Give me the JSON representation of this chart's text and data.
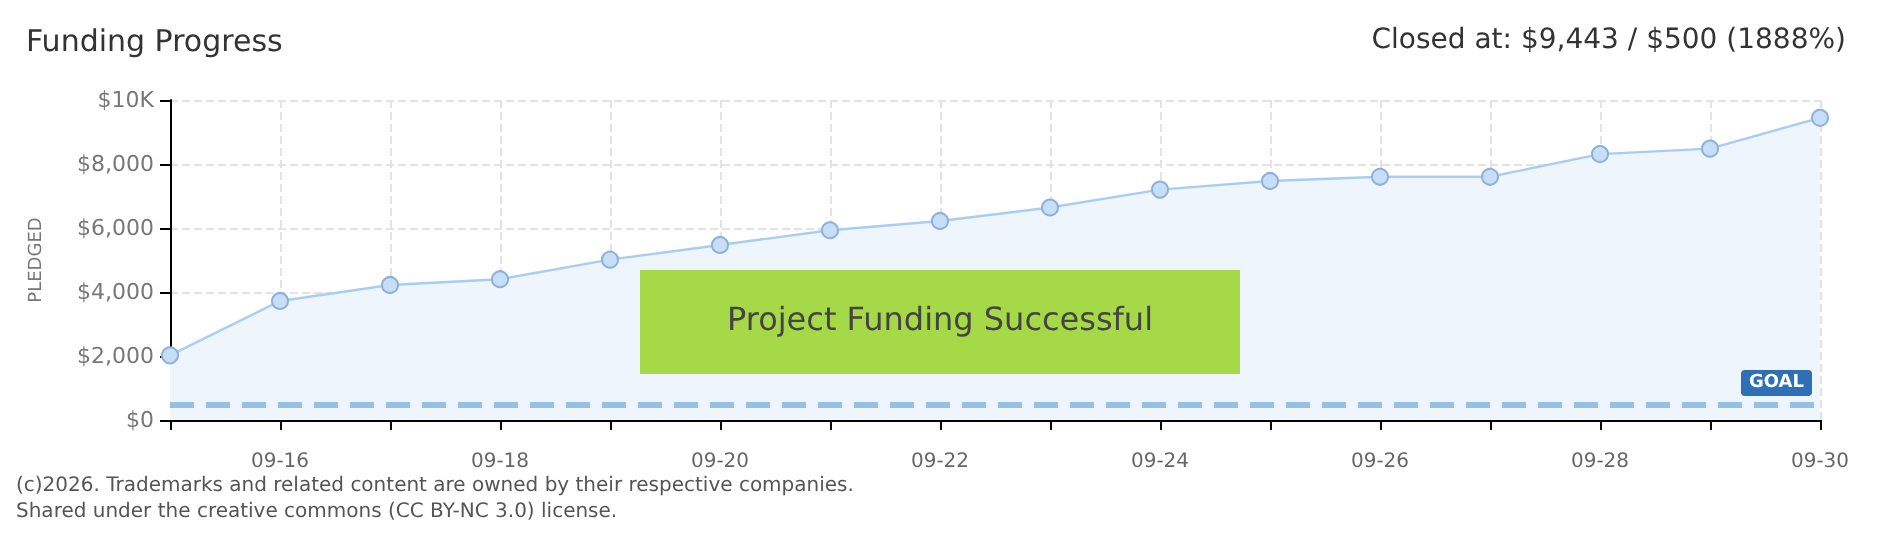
{
  "chart_data": {
    "type": "area",
    "title": "Funding Progress",
    "subtitle": "Closed at: $9,443 / $500 (1888%)",
    "ylabel": "PLEDGED",
    "annotations": [
      "Project Funding Successful",
      "(c)2026. Trademarks and related content are owned by their respective companies.",
      "Shared under the creative commons (CC BY-NC 3.0) license."
    ],
    "categories": [
      null,
      "09-16",
      null,
      "09-18",
      null,
      "09-20",
      null,
      "09-22",
      null,
      "09-24",
      null,
      "09-26",
      null,
      "09-28",
      null,
      "09-30"
    ],
    "series": [
      {
        "color": "#a9cdf2",
        "values": [
          2020,
          3720,
          4220,
          4400,
          5010,
          5470,
          5930,
          6220,
          6640,
          7200,
          7470,
          7600,
          7600,
          8310,
          8480,
          9443
        ]
      }
    ],
    "ylim": [
      0,
      10000
    ],
    "yticks": [
      {
        "value": 0,
        "label": "$0"
      },
      {
        "value": 2000,
        "label": "$2,000"
      },
      {
        "value": 4000,
        "label": "$4,000"
      },
      {
        "value": 6000,
        "label": "$6,000"
      },
      {
        "value": 8000,
        "label": "$8,000"
      },
      {
        "value": 10000,
        "label": "$10K"
      }
    ],
    "ref_lines": [
      {
        "axis": "y",
        "value": 500,
        "label": "GOAL",
        "color": "#5b9bd5",
        "line_style": "dashed"
      }
    ],
    "grid": true,
    "marker": "circle"
  }
}
